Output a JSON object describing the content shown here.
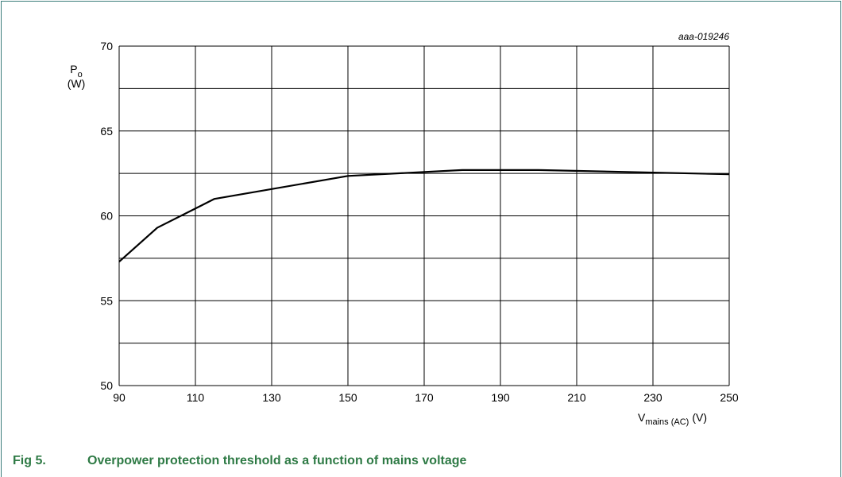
{
  "chart_data": {
    "type": "line",
    "code": "aaa-019246",
    "y_label": {
      "main": "P",
      "sub": "o",
      "unit": "(W)"
    },
    "x_label": {
      "main": "V",
      "sub": "mains (AC)",
      "unit": "(V)"
    },
    "x": [
      90,
      100,
      115,
      150,
      180,
      200,
      230,
      250
    ],
    "values": [
      57.3,
      59.3,
      61.0,
      62.35,
      62.7,
      62.7,
      62.55,
      62.45
    ],
    "color": "#000000",
    "xlim": [
      90,
      250
    ],
    "xticks": [
      90,
      110,
      130,
      150,
      170,
      190,
      210,
      230,
      250
    ],
    "ylim": [
      50,
      70
    ],
    "yticks": [
      50,
      55,
      60,
      65,
      70
    ],
    "y_minor_ticks": [
      52.5,
      57.5,
      62.5,
      67.5
    ],
    "grid": true
  },
  "caption": {
    "number": "Fig 5.",
    "text": "Overpower protection threshold as a function of mains voltage"
  }
}
